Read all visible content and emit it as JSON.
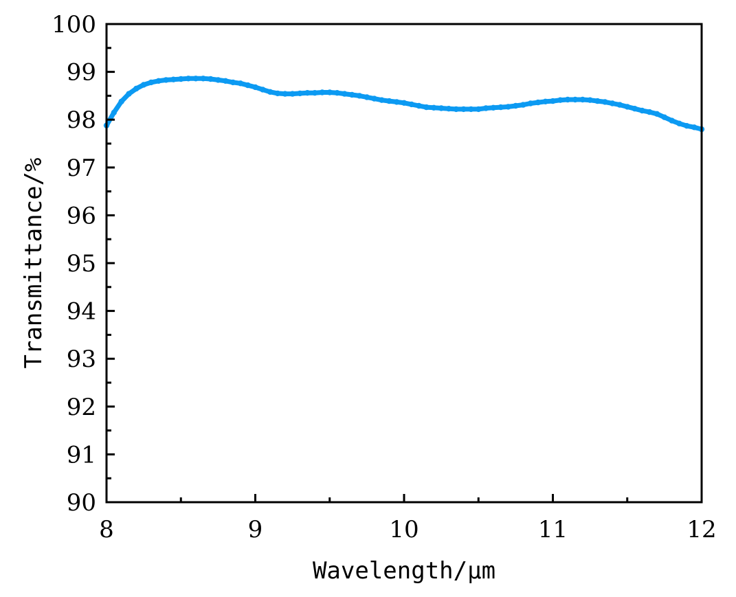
{
  "chart_data": {
    "type": "line",
    "title": "",
    "xlabel": "Wavelength/μm",
    "ylabel": "Transmittance/%",
    "xlim": [
      8,
      12
    ],
    "ylim": [
      90,
      100
    ],
    "x_ticks": [
      "8",
      "9",
      "10",
      "11",
      "12"
    ],
    "y_ticks": [
      "90",
      "91",
      "92",
      "93",
      "94",
      "95",
      "96",
      "97",
      "98",
      "99",
      "100"
    ],
    "grid": false,
    "legend": "none",
    "line_color": "#0c9af2",
    "series": [
      {
        "x": [
          8.0,
          8.05,
          8.1,
          8.15,
          8.2,
          8.25,
          8.3,
          8.35,
          8.4,
          8.45,
          8.5,
          8.55,
          8.6,
          8.65,
          8.7,
          8.75,
          8.8,
          8.85,
          8.9,
          8.95,
          9.0,
          9.05,
          9.1,
          9.15,
          9.2,
          9.25,
          9.3,
          9.35,
          9.4,
          9.45,
          9.5,
          9.55,
          9.6,
          9.65,
          9.7,
          9.75,
          9.8,
          9.85,
          9.9,
          9.95,
          10.0,
          10.05,
          10.1,
          10.15,
          10.2,
          10.25,
          10.3,
          10.35,
          10.4,
          10.45,
          10.5,
          10.55,
          10.6,
          10.65,
          10.7,
          10.75,
          10.8,
          10.85,
          10.9,
          10.95,
          11.0,
          11.05,
          11.1,
          11.15,
          11.2,
          11.25,
          11.3,
          11.35,
          11.4,
          11.45,
          11.5,
          11.55,
          11.6,
          11.65,
          11.7,
          11.75,
          11.8,
          11.85,
          11.9,
          11.95,
          12.0
        ],
        "values": [
          97.88,
          98.15,
          98.38,
          98.54,
          98.65,
          98.73,
          98.78,
          98.81,
          98.83,
          98.84,
          98.85,
          98.86,
          98.86,
          98.86,
          98.85,
          98.83,
          98.81,
          98.78,
          98.76,
          98.72,
          98.68,
          98.63,
          98.58,
          98.55,
          98.54,
          98.54,
          98.55,
          98.56,
          98.56,
          98.57,
          98.57,
          98.56,
          98.54,
          98.52,
          98.5,
          98.47,
          98.44,
          98.41,
          98.39,
          98.37,
          98.35,
          98.32,
          98.29,
          98.26,
          98.25,
          98.24,
          98.23,
          98.22,
          98.22,
          98.22,
          98.22,
          98.24,
          98.25,
          98.26,
          98.27,
          98.29,
          98.31,
          98.34,
          98.36,
          98.38,
          98.39,
          98.41,
          98.42,
          98.42,
          98.42,
          98.41,
          98.39,
          98.37,
          98.34,
          98.31,
          98.27,
          98.23,
          98.19,
          98.16,
          98.12,
          98.05,
          97.98,
          97.92,
          97.87,
          97.84,
          97.8
        ]
      }
    ]
  }
}
